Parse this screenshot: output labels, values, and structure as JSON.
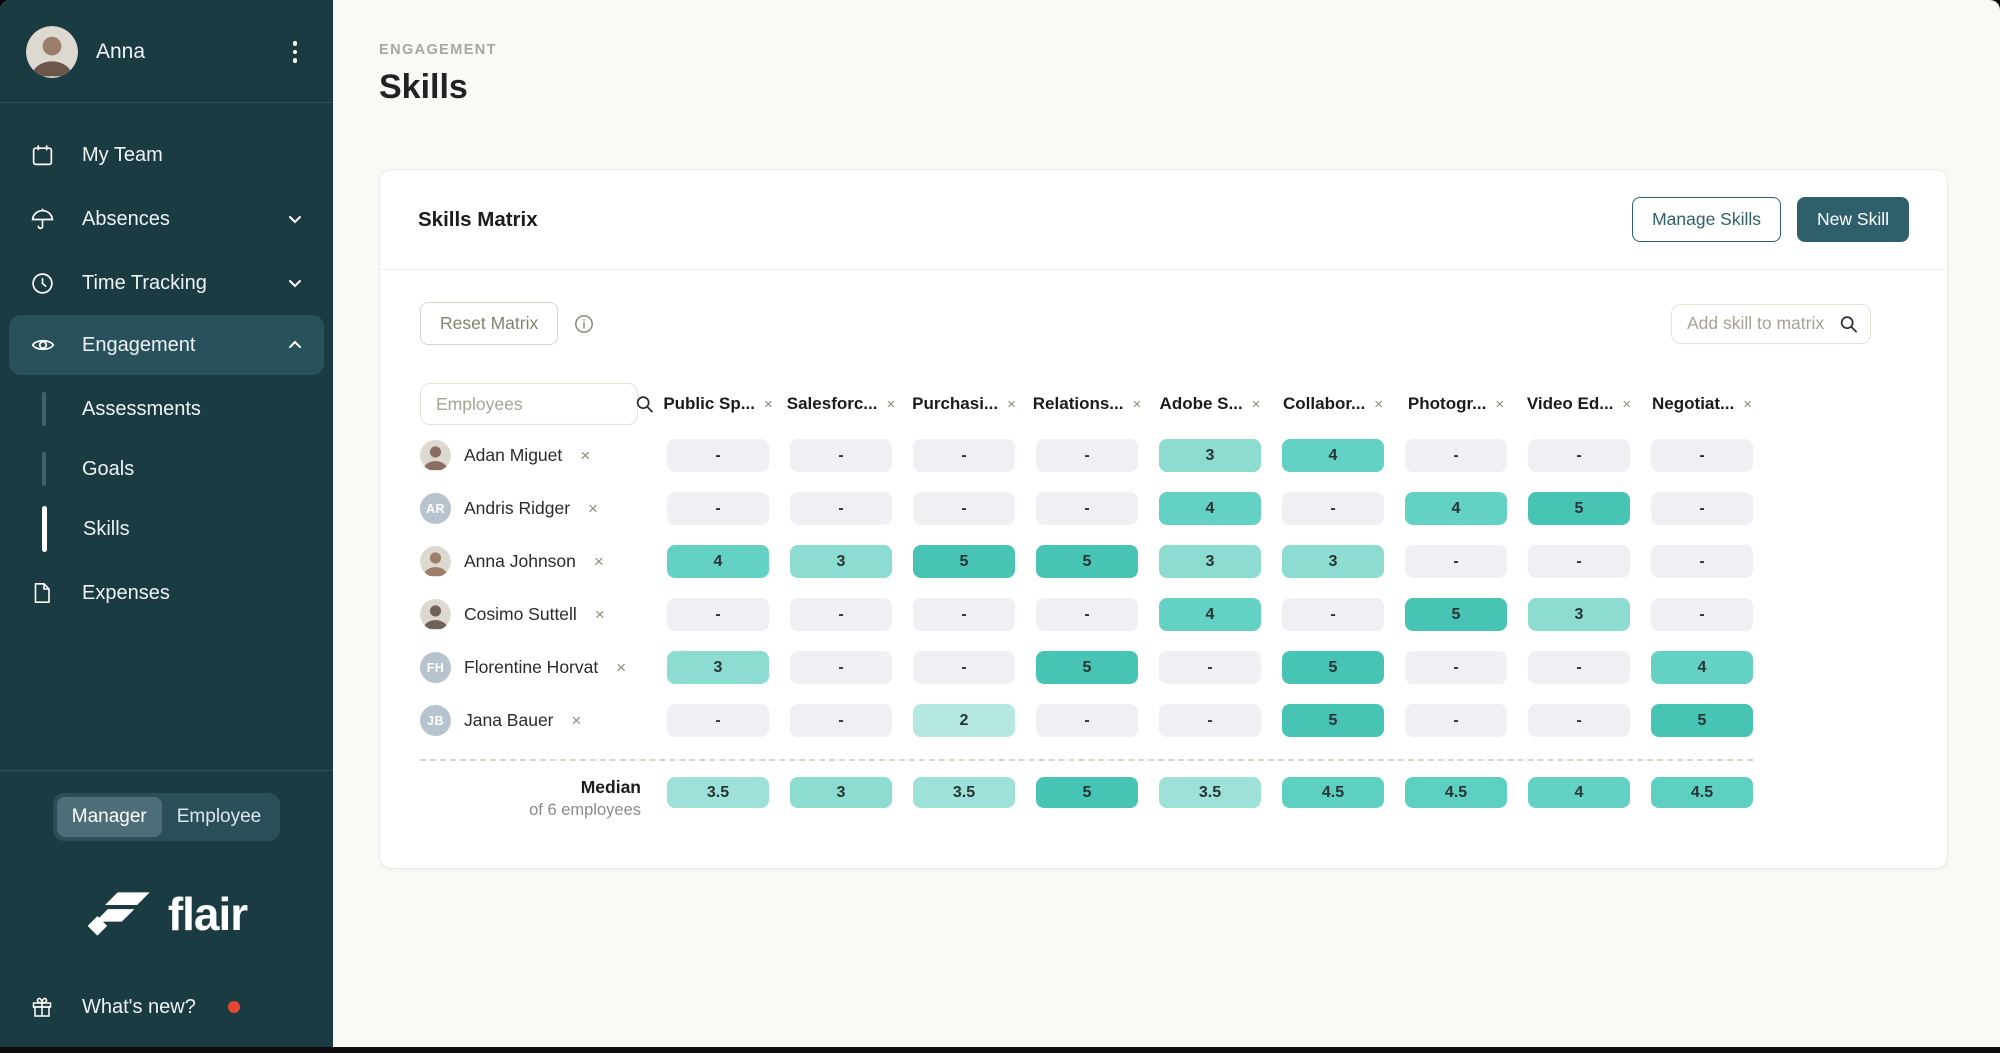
{
  "sidebar": {
    "user": {
      "name": "Anna"
    },
    "items": [
      {
        "label": "My Team",
        "icon": "calendar"
      },
      {
        "label": "Absences",
        "icon": "umbrella",
        "chevron": "down"
      },
      {
        "label": "Time Tracking",
        "icon": "clock",
        "chevron": "down"
      },
      {
        "label": "Engagement",
        "icon": "eye",
        "chevron": "up",
        "active": true
      },
      {
        "label": "Expenses",
        "icon": "document"
      }
    ],
    "engagement_subitems": [
      {
        "label": "Assessments",
        "active": false
      },
      {
        "label": "Goals",
        "active": false
      },
      {
        "label": "Skills",
        "active": true
      }
    ],
    "role_toggle": {
      "options": [
        "Manager",
        "Employee"
      ],
      "selected": "Manager"
    },
    "brand": "flair",
    "whats_new_label": "What's new?"
  },
  "header": {
    "breadcrumb": "ENGAGEMENT",
    "title": "Skills"
  },
  "matrix_card": {
    "title": "Skills Matrix",
    "manage_skills_label": "Manage Skills",
    "new_skill_label": "New Skill",
    "reset_label": "Reset Matrix",
    "add_skill_placeholder": "Add skill to matrix",
    "employees_placeholder": "Employees",
    "columns": [
      "Public Sp...",
      "Salesforc...",
      "Purchasi...",
      "Relations...",
      "Adobe S...",
      "Collabor...",
      "Photogr...",
      "Video Ed...",
      "Negotiat..."
    ],
    "rows": [
      {
        "name": "Adan Miguet",
        "avatar": {
          "type": "photo",
          "tone": "#8a6e63"
        },
        "values": [
          "-",
          "-",
          "-",
          "-",
          "3",
          "4",
          "-",
          "-",
          "-"
        ]
      },
      {
        "name": "Andris Ridger",
        "avatar": {
          "type": "initials",
          "text": "AR"
        },
        "values": [
          "-",
          "-",
          "-",
          "-",
          "4",
          "-",
          "4",
          "5",
          "-"
        ]
      },
      {
        "name": "Anna Johnson",
        "avatar": {
          "type": "photo",
          "tone": "#9b7f6b"
        },
        "values": [
          "4",
          "3",
          "5",
          "5",
          "3",
          "3",
          "-",
          "-",
          "-"
        ]
      },
      {
        "name": "Cosimo Suttell",
        "avatar": {
          "type": "photo",
          "tone": "#6f6257"
        },
        "values": [
          "-",
          "-",
          "-",
          "-",
          "4",
          "-",
          "5",
          "3",
          "-"
        ]
      },
      {
        "name": "Florentine Horvat",
        "avatar": {
          "type": "initials",
          "text": "FH"
        },
        "values": [
          "3",
          "-",
          "-",
          "5",
          "-",
          "5",
          "-",
          "-",
          "4"
        ]
      },
      {
        "name": "Jana Bauer",
        "avatar": {
          "type": "initials",
          "text": "JB"
        },
        "values": [
          "-",
          "-",
          "2",
          "-",
          "-",
          "5",
          "-",
          "-",
          "5"
        ]
      }
    ],
    "median": {
      "label": "Median",
      "sublabel": "of 6 employees",
      "values": [
        "3.5",
        "3",
        "3.5",
        "5",
        "3.5",
        "4.5",
        "4.5",
        "4",
        "4.5"
      ]
    }
  },
  "icons": {
    "close": "×"
  },
  "colors": {
    "sidebar_bg": "#1b3b43",
    "accent_teal": "#2e606c",
    "whats_new_dot": "#e54631",
    "score_colors": {
      "-": "#eef0f3",
      "2": "#b4e8e0",
      "3": "#8cdcd2",
      "3.5": "#9de1d8",
      "4": "#63d1c3",
      "4.5": "#5ed0c2",
      "5": "#48c4b4"
    }
  }
}
